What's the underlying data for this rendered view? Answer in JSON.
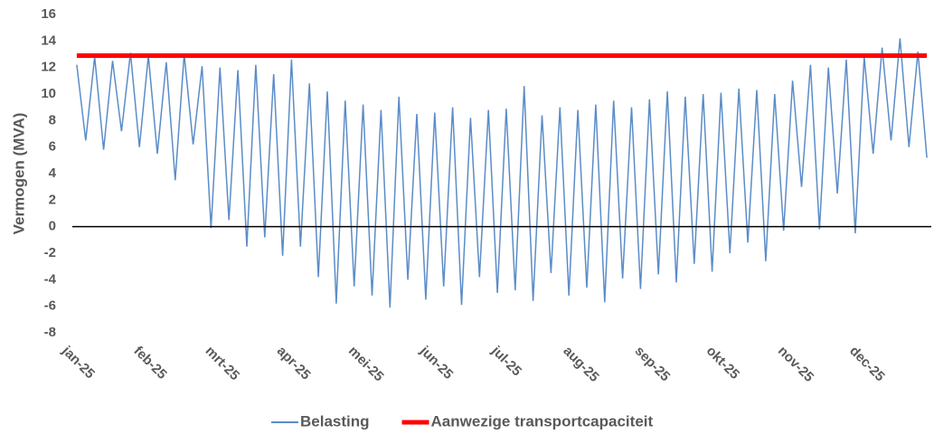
{
  "chart_data": {
    "type": "line",
    "y_label": "Vermogen (MVA)",
    "categories": [
      "jan-25",
      null,
      null,
      null,
      null,
      null,
      null,
      null,
      "feb-25",
      null,
      null,
      null,
      null,
      null,
      null,
      null,
      "mrt-25",
      null,
      null,
      null,
      null,
      null,
      null,
      null,
      "apr-25",
      null,
      null,
      null,
      null,
      null,
      null,
      null,
      "mei-25",
      null,
      null,
      null,
      null,
      null,
      null,
      null,
      "jun-25",
      null,
      null,
      null,
      null,
      null,
      null,
      null,
      "jul-25",
      null,
      null,
      null,
      null,
      null,
      null,
      null,
      "aug-25",
      null,
      null,
      null,
      null,
      null,
      null,
      null,
      "sep-25",
      null,
      null,
      null,
      null,
      null,
      null,
      null,
      "okt-25",
      null,
      null,
      null,
      null,
      null,
      null,
      null,
      "nov-25",
      null,
      null,
      null,
      null,
      null,
      null,
      null,
      "dec-25",
      null,
      null,
      null,
      null,
      null,
      null,
      null
    ],
    "series": [
      {
        "name": "Belasting",
        "color": "#5b8cc8",
        "values": [
          12.2,
          6.5,
          12.8,
          5.8,
          12.5,
          7.2,
          13.1,
          6.0,
          12.9,
          5.5,
          12.4,
          3.5,
          13.0,
          6.2,
          12.1,
          -0.1,
          12.0,
          0.5,
          11.8,
          -1.5,
          12.2,
          -0.8,
          11.5,
          -2.2,
          12.6,
          -1.5,
          10.8,
          -3.8,
          10.2,
          -5.8,
          9.5,
          -4.5,
          9.2,
          -5.2,
          8.8,
          -6.1,
          9.8,
          -4.0,
          8.5,
          -5.5,
          8.6,
          -4.5,
          9.0,
          -5.9,
          8.2,
          -3.8,
          8.8,
          -5.0,
          8.9,
          -4.8,
          10.6,
          -5.6,
          8.4,
          -3.5,
          9.0,
          -5.2,
          8.8,
          -4.6,
          9.2,
          -5.7,
          9.5,
          -3.9,
          9.0,
          -4.7,
          9.6,
          -3.6,
          10.2,
          -4.2,
          9.8,
          -2.8,
          10.0,
          -3.4,
          10.1,
          -2.0,
          10.4,
          -1.2,
          10.3,
          -2.6,
          10.0,
          -0.3,
          11.0,
          3.0,
          12.2,
          -0.2,
          12.0,
          2.5,
          12.6,
          -0.5,
          12.8,
          5.5,
          13.5,
          6.5,
          14.2,
          6.0,
          13.2,
          5.2
        ]
      },
      {
        "name": "Aanwezige transportcapaciteit",
        "color": "#ff0000",
        "values": [
          12.9,
          12.9,
          12.9,
          12.9,
          12.9,
          12.9,
          12.9,
          12.9,
          12.9,
          12.9,
          12.9,
          12.9,
          12.9,
          12.9,
          12.9,
          12.9,
          12.9,
          12.9,
          12.9,
          12.9,
          12.9,
          12.9,
          12.9,
          12.9,
          12.9,
          12.9,
          12.9,
          12.9,
          12.9,
          12.9,
          12.9,
          12.9,
          12.9,
          12.9,
          12.9,
          12.9,
          12.9,
          12.9,
          12.9,
          12.9,
          12.9,
          12.9,
          12.9,
          12.9,
          12.9,
          12.9,
          12.9,
          12.9,
          12.9,
          12.9,
          12.9,
          12.9,
          12.9,
          12.9,
          12.9,
          12.9,
          12.9,
          12.9,
          12.9,
          12.9,
          12.9,
          12.9,
          12.9,
          12.9,
          12.9,
          12.9,
          12.9,
          12.9,
          12.9,
          12.9,
          12.9,
          12.9,
          12.9,
          12.9,
          12.9,
          12.9,
          12.9,
          12.9,
          12.9,
          12.9,
          12.9,
          12.9,
          12.9,
          12.9,
          12.9,
          12.9,
          12.9,
          12.9,
          12.9,
          12.9,
          12.9,
          12.9,
          12.9,
          12.9,
          12.9,
          12.9
        ]
      }
    ],
    "ylim": [
      -8,
      16
    ],
    "yticks": [
      -8,
      -6,
      -4,
      -2,
      0,
      2,
      4,
      6,
      8,
      10,
      12,
      14,
      16
    ],
    "zero_line": true,
    "legend": "bottom"
  }
}
